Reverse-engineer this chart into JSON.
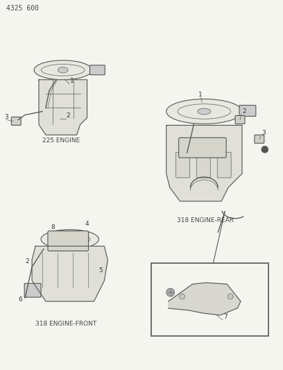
{
  "title": "4325 600",
  "bg_color": "#f5f5f0",
  "line_color": "#555555",
  "label_225": "225 ENGINE",
  "label_318_rear": "318 ENGINE-REAR",
  "label_318_front": "318 ENGINE-FRONT",
  "fig_width": 4.08,
  "fig_height": 5.33,
  "dpi": 100
}
